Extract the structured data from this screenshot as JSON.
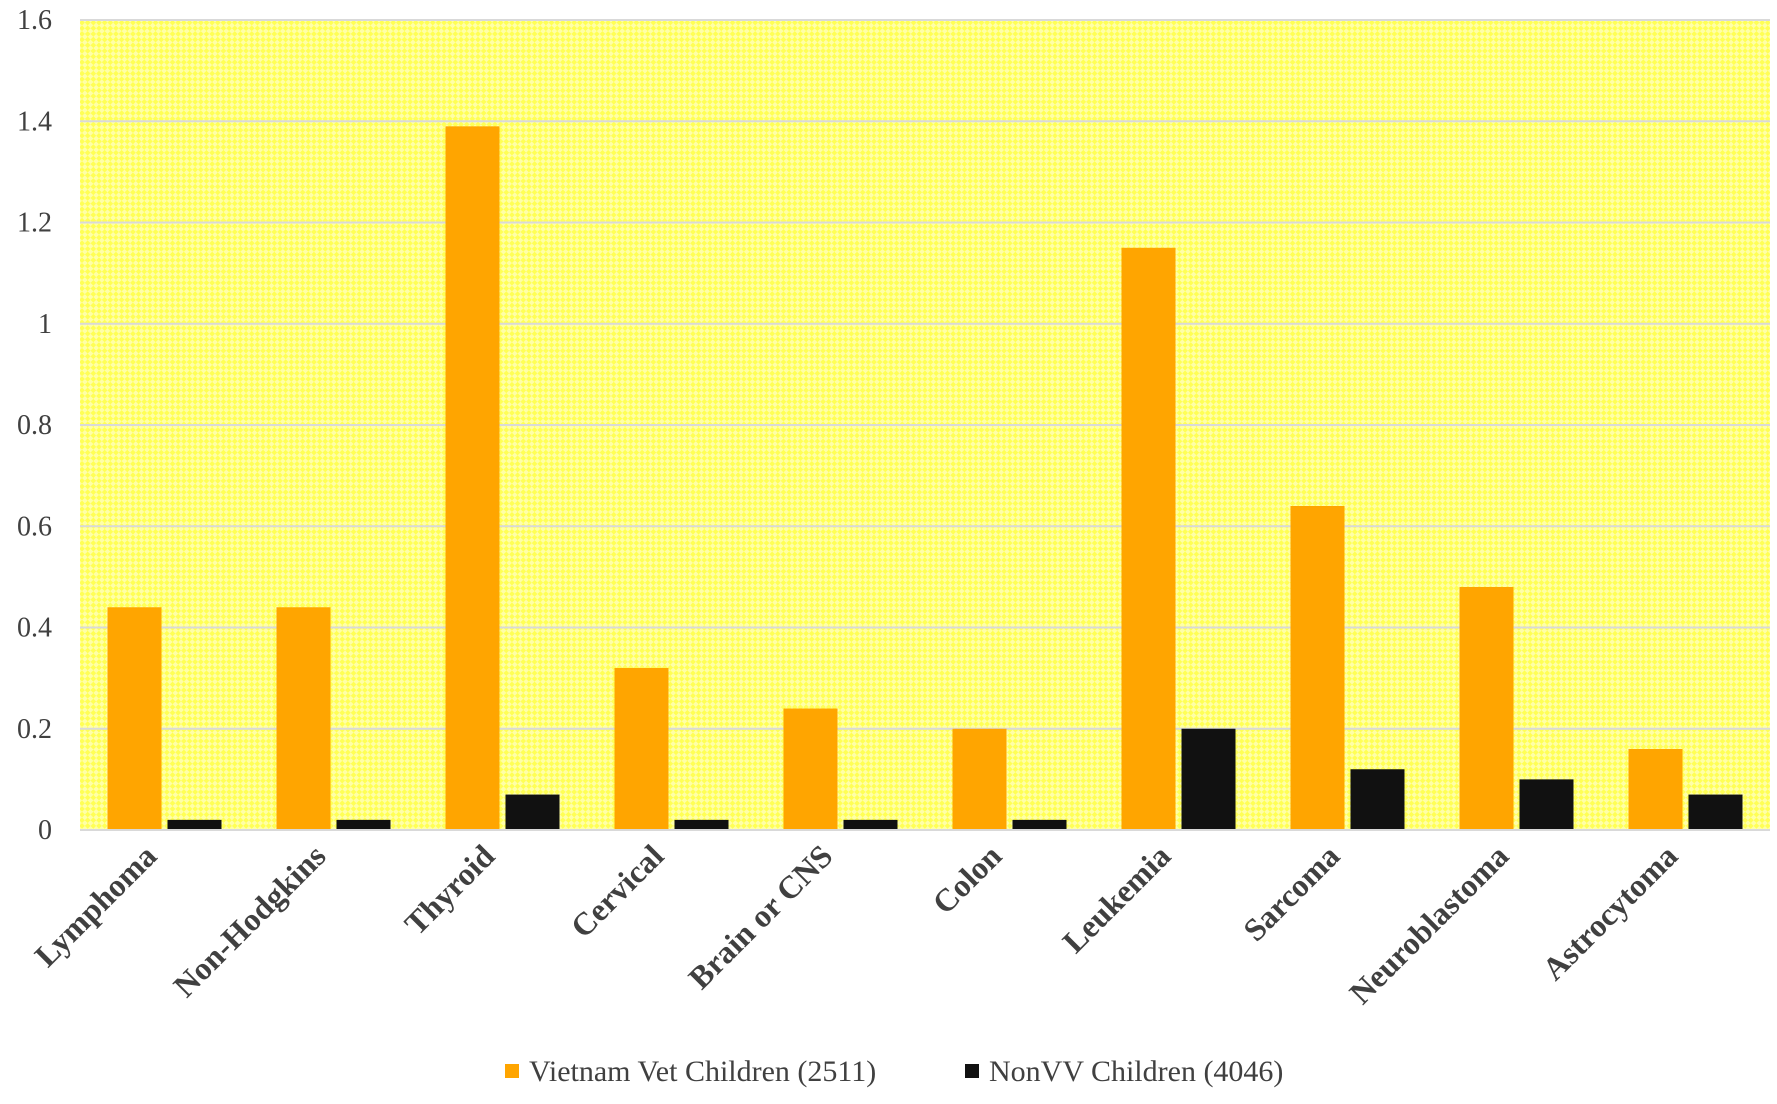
{
  "chart_data": {
    "type": "bar",
    "title": "",
    "xlabel": "",
    "ylabel": "",
    "ylim": [
      0,
      1.6
    ],
    "yticks": [
      "0",
      "0.2",
      "0.4",
      "0.6",
      "0.8",
      "1",
      "1.2",
      "1.4",
      "1.6"
    ],
    "grid": true,
    "legend_position": "bottom",
    "categories": [
      "Lymphoma",
      "Non-Hodgkins",
      "Thyroid",
      "Cervical",
      "Brain or CNS",
      "Colon",
      "Leukemia",
      "Sarcoma",
      "Neuroblastoma",
      "Astrocytoma"
    ],
    "series": [
      {
        "name": "Vietnam Vet Children (2511)",
        "color": "#FFA500",
        "values": [
          0.44,
          0.44,
          1.39,
          0.32,
          0.24,
          0.2,
          1.15,
          0.64,
          0.48,
          0.16
        ]
      },
      {
        "name": "NonVV Children (4046)",
        "color": "#111111",
        "values": [
          0.02,
          0.02,
          0.07,
          0.02,
          0.02,
          0.02,
          0.2,
          0.12,
          0.1,
          0.07
        ]
      }
    ],
    "plot_background": "#FFFF66"
  }
}
